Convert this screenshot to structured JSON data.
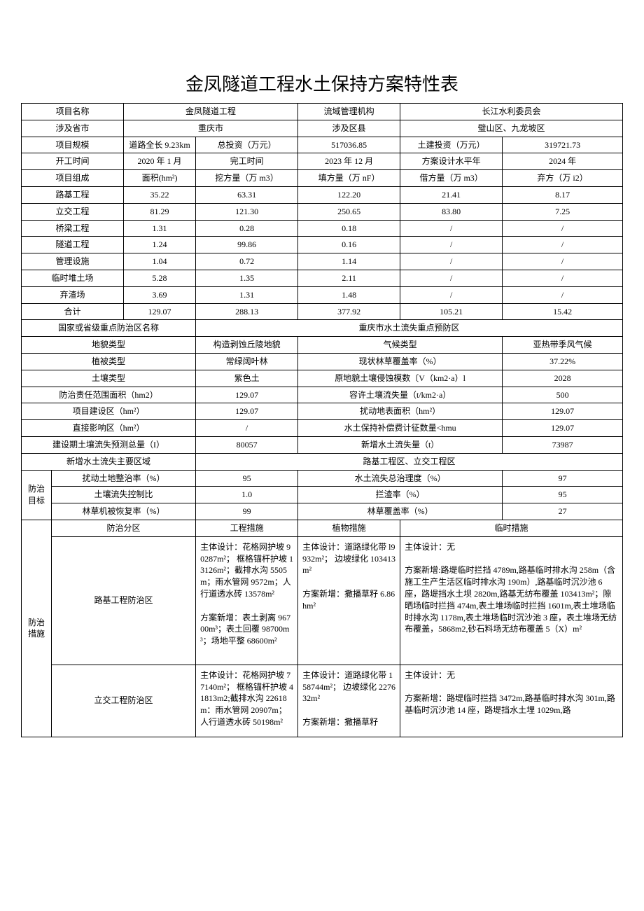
{
  "title": "金凤隧道工程水土保持方案特性表",
  "r1": {
    "c1": "项目名称",
    "c2": "金凤隧道工程",
    "c3": "流域管理机构",
    "c4": "长江水利委员会"
  },
  "r2": {
    "c1": "涉及省市",
    "c2": "重庆市",
    "c3": "涉及区县",
    "c4": "璧山区、九龙坡区"
  },
  "r3": {
    "c1": "项目规模",
    "c2": "道路全长 9.23km",
    "c3": "总投资（万元）",
    "c4": "517036.85",
    "c5": "土建投资（万元）",
    "c6": "319721.73"
  },
  "r4": {
    "c1": "开工时间",
    "c2": "2020 年 1 月",
    "c3": "完工时间",
    "c4": "2023 年 12 月",
    "c5": "方案设计水平年",
    "c6": "2024 年"
  },
  "r5": {
    "c1": "项目组成",
    "c2": "面积(hm²)",
    "c3": "挖方量（万 m3）",
    "c4": "填方量（万 nF）",
    "c5": "借方量（万 m3）",
    "c6": "弃方（万 i2）"
  },
  "r6": {
    "c1": "路基工程",
    "c2": "35.22",
    "c3": "63.31",
    "c4": "122.20",
    "c5": "21.41",
    "c6": "8.17"
  },
  "r7": {
    "c1": "立交工程",
    "c2": "81.29",
    "c3": "121.30",
    "c4": "250.65",
    "c5": "83.80",
    "c6": "7.25"
  },
  "r8": {
    "c1": "桥梁工程",
    "c2": "1.31",
    "c3": "0.28",
    "c4": "0.18",
    "c5": "/",
    "c6": "/"
  },
  "r9": {
    "c1": "隧道工程",
    "c2": "1.24",
    "c3": "99.86",
    "c4": "0.16",
    "c5": "/",
    "c6": "/"
  },
  "r10": {
    "c1": "管理设施",
    "c2": "1.04",
    "c3": "0.72",
    "c4": "1.14",
    "c5": "/",
    "c6": "/"
  },
  "r11": {
    "c1": "临时堆土场",
    "c2": "5.28",
    "c3": "1.35",
    "c4": "2.11",
    "c5": "/",
    "c6": "/"
  },
  "r12": {
    "c1": "弃渣场",
    "c2": "3.69",
    "c3": "1.31",
    "c4": "1.48",
    "c5": "/",
    "c6": "/"
  },
  "r13": {
    "c1": "合计",
    "c2": "129.07",
    "c3": "288.13",
    "c4": "377.92",
    "c5": "105.21",
    "c6": "15.42"
  },
  "r14": {
    "c1": "国家或省级重点防治区名称",
    "c2": "重庆市水土流失重点预防区"
  },
  "r15": {
    "c1": "地貌类型",
    "c2": "构造剥蚀丘陵地貌",
    "c3": "气候类型",
    "c4": "亚热带季风气候"
  },
  "r16": {
    "c1": "植被类型",
    "c2": "常绿阔叶林",
    "c3": "现状林草覆盖率（%）",
    "c4": "37.22%"
  },
  "r17": {
    "c1": "土壤类型",
    "c2": "紫色土",
    "c3": "原地貌土壤侵蚀模数〔V（km2·a）l",
    "c4": "2028"
  },
  "r18": {
    "c1": "防治责任范围面积（hm2）",
    "c2": "129.07",
    "c3": "容许土壤流失量（t/km2·a）",
    "c4": "500"
  },
  "r19": {
    "c1": "项目建设区（hm²）",
    "c2": "129.07",
    "c3": "扰动地表面积（hm²）",
    "c4": "129.07"
  },
  "r20": {
    "c1": "直接影响区（hm²）",
    "c2": "/",
    "c3": "水土保持补偿费计征数量<hmu",
    "c4": "129.07"
  },
  "r21": {
    "c1": "建设期土壤流失预测总量（I）",
    "c2": "80057",
    "c3": "新增水土流失量（t）",
    "c4": "73987"
  },
  "r22": {
    "c1": "新增水土流失主要区域",
    "c2": "路基工程区、立交工程区"
  },
  "fz_label": "防治目标",
  "r23": {
    "c1": "扰动土地整治率（%）",
    "c2": "95",
    "c3": "水土流失总治理度（%）",
    "c4": "97"
  },
  "r24": {
    "c1": "土壤流失控制比",
    "c2": "1.0",
    "c3": "拦渣率（%）",
    "c4": "95"
  },
  "r25": {
    "c1": "林草机被恢复率（%）",
    "c2": "99",
    "c3": "林草覆盖率（%）",
    "c4": "27"
  },
  "cs_label": "防治措施",
  "hdr": {
    "c1": "防治分区",
    "c2": "工程措施",
    "c3": "植物措施",
    "c4": "临时措施"
  },
  "m1": {
    "zone": "路基工程防治区",
    "eng": "主体设计：花格网护坡 90287m²；  框格锚杆护坡 13126m²；截排水沟 5505m；雨水管网 9572m；人行道透水砖 13578m²\n\n方案新增：表土剥离 96700m³；表土回覆 98700m³；场地平整 68600m²",
    "plant": "主体设计：道路绿化带 l9932m²；  边坡绿化 103413m²\n\n方案新增：撒播草籽 6.86hm²",
    "temp": "主体设计：无\n\n方案新增:路堤临时拦挡 4789m,路基临时排水沟 258m（含施工生产生活区临时排水沟 190m）,路基临时沉沙池 6 座，路堤挡水土坝 2820m,路基无纺布覆盖 103413m²；隙晒场临时拦挡 474m,表土堆场临时拦挡 1601m,表土堆场临时排水沟 1178m,表土堆场临时沉沙池 3 座，表土堆场无纺布覆盖，5868m2,砂石料场无纺布覆盖 5（X）m²"
  },
  "m2": {
    "zone": "立交工程防治区",
    "eng": "主体设计：花格网护坡 77140m²；  框格锚杆护坡 41813m2;截排水沟 22618m：雨水管网 20907m；人行道透水砖 50198m²",
    "plant": "主体设计：道路绿化带 158744m²；  边坡绿化 227632m²\n\n方案新增：撒播草籽",
    "temp": "主体设计：无\n\n方案新增：路堤临时拦挡 3472m,路基临时排水沟 301m,路基临时沉沙池 14 座，路堤挡水土埋 1029m,路"
  }
}
